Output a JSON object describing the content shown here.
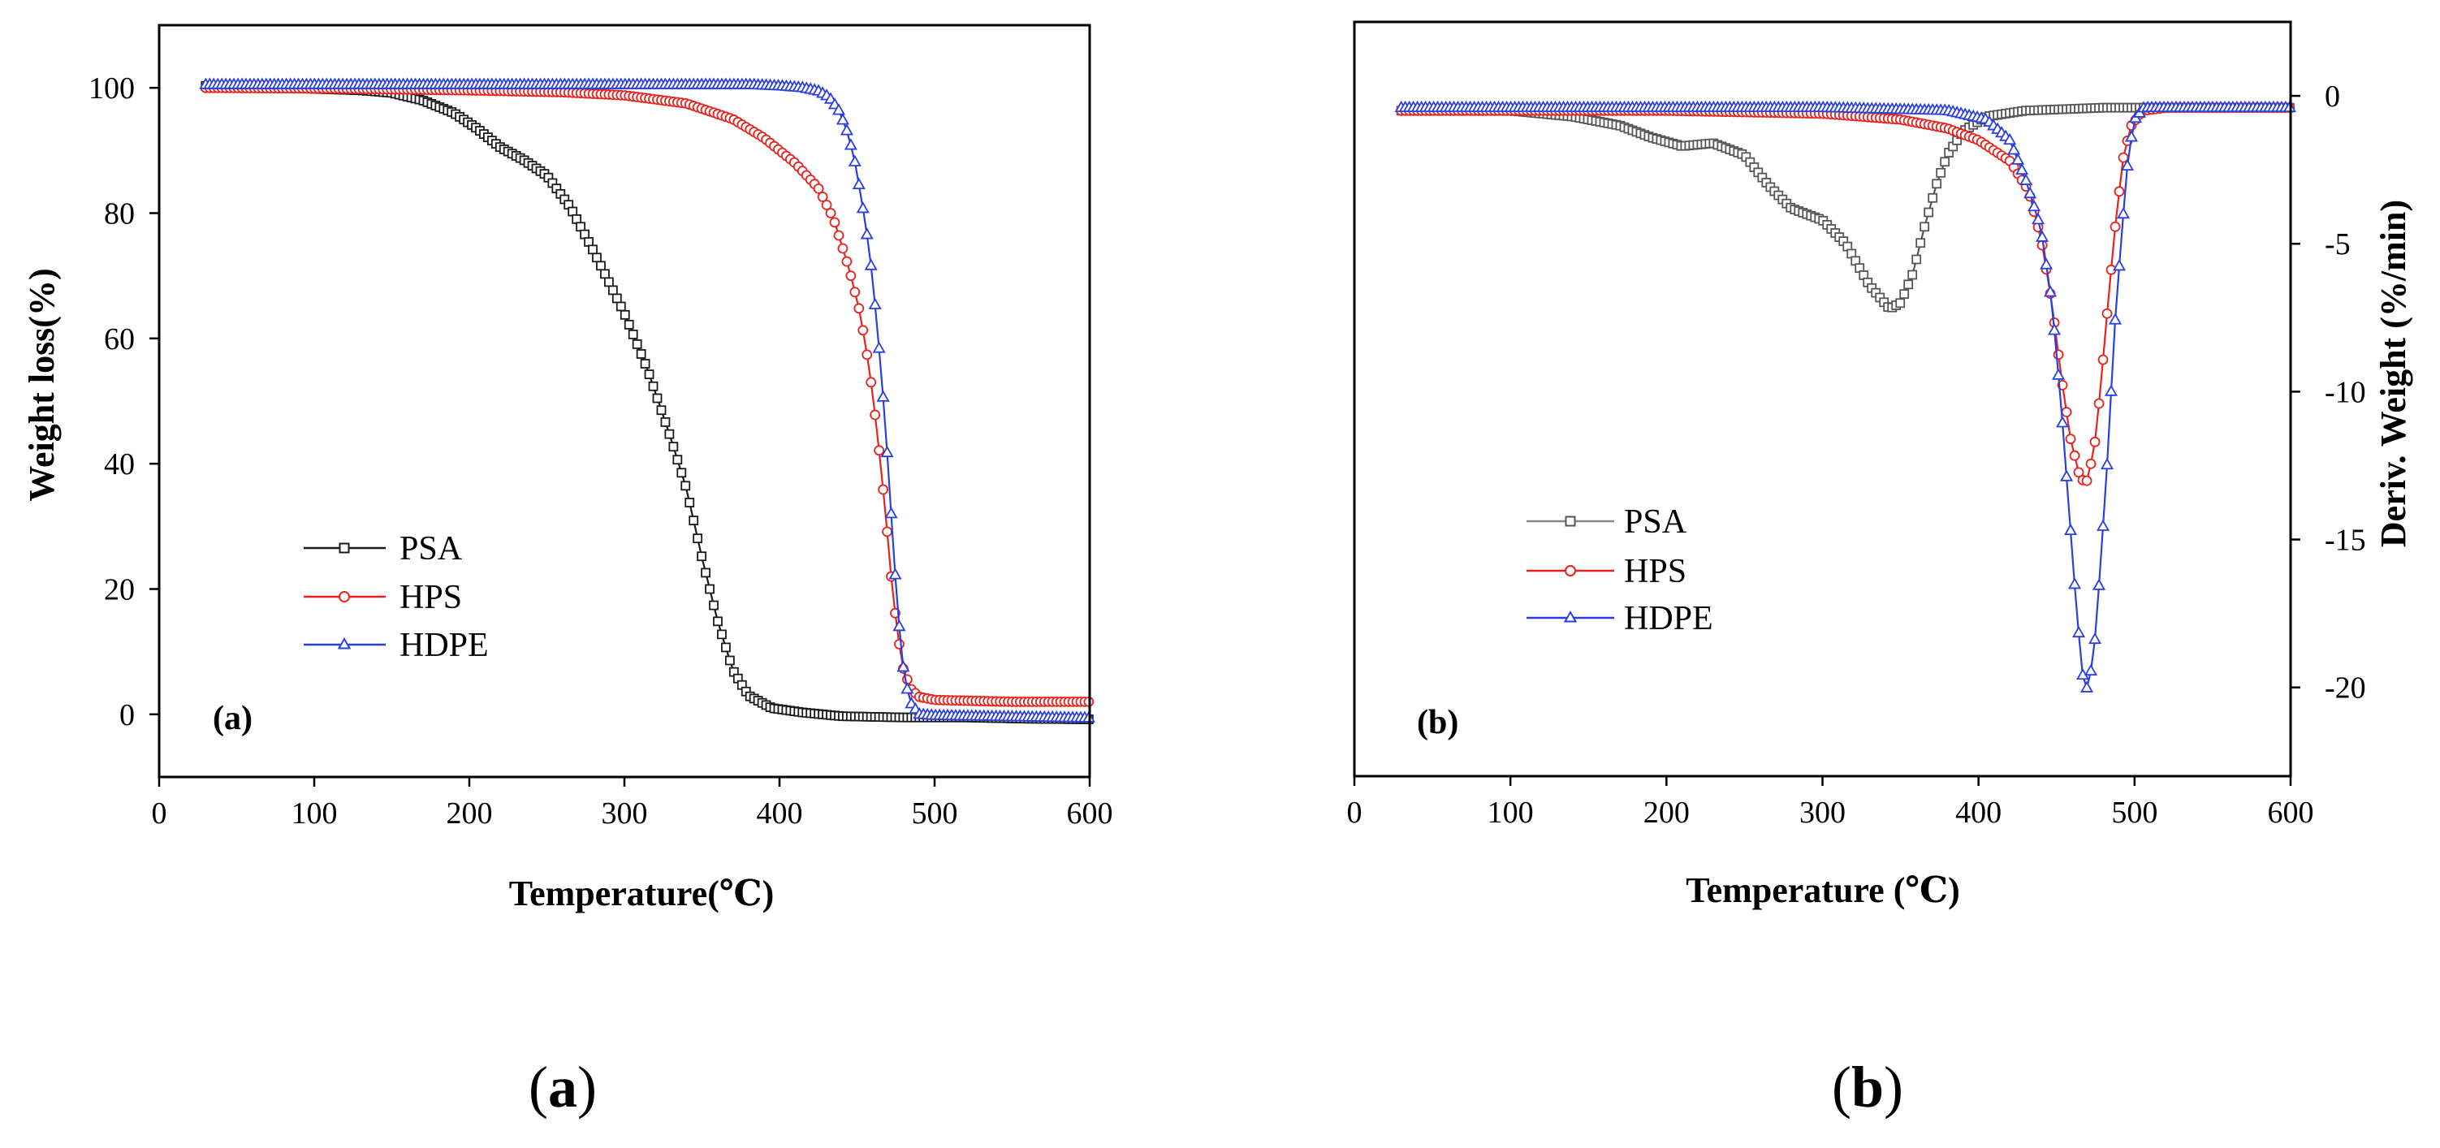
{
  "figure": {
    "captions": [
      "(a)",
      "(b)"
    ],
    "caption_parts": [
      {
        "open": "(",
        "letter": "a",
        "close": ")"
      },
      {
        "open": "(",
        "letter": "b",
        "close": ")"
      }
    ]
  },
  "colors": {
    "PSA": "#1a1a1a",
    "HPS": "#e8221c",
    "HDPE": "#2a3fe0",
    "axis": "#000000"
  },
  "chart_data": [
    {
      "type": "line",
      "panel_label": "(a)",
      "title": "",
      "xlabel": "Temperature(℃)",
      "ylabel": "Weight loss(%)",
      "xlim": [
        0,
        600
      ],
      "ylim": [
        -10,
        110
      ],
      "xticks": [
        0,
        100,
        200,
        300,
        400,
        500,
        600
      ],
      "yticks": [
        0,
        20,
        40,
        60,
        80,
        100
      ],
      "legend_position": "center-left",
      "series": [
        {
          "name": "PSA",
          "marker": "square",
          "points": [
            [
              30,
              100.3
            ],
            [
              80,
              100
            ],
            [
              130,
              99.6
            ],
            [
              150,
              99.2
            ],
            [
              170,
              98
            ],
            [
              190,
              96
            ],
            [
              205,
              93.5
            ],
            [
              220,
              90.5
            ],
            [
              235,
              88.5
            ],
            [
              250,
              86
            ],
            [
              265,
              81
            ],
            [
              280,
              74
            ],
            [
              300,
              64
            ],
            [
              315,
              55
            ],
            [
              330,
              44
            ],
            [
              340,
              36
            ],
            [
              350,
              25
            ],
            [
              360,
              15
            ],
            [
              370,
              7
            ],
            [
              380,
              3
            ],
            [
              395,
              1
            ],
            [
              415,
              0.3
            ],
            [
              440,
              -0.3
            ],
            [
              480,
              -0.5
            ],
            [
              520,
              -0.5
            ],
            [
              560,
              -0.7
            ],
            [
              600,
              -0.8
            ]
          ]
        },
        {
          "name": "HPS",
          "marker": "circle",
          "points": [
            [
              30,
              100
            ],
            [
              100,
              99.9
            ],
            [
              200,
              99.6
            ],
            [
              260,
              99.3
            ],
            [
              300,
              98.8
            ],
            [
              340,
              97.5
            ],
            [
              370,
              95
            ],
            [
              390,
              92
            ],
            [
              410,
              88
            ],
            [
              425,
              84
            ],
            [
              435,
              79
            ],
            [
              445,
              71
            ],
            [
              452,
              64
            ],
            [
              458,
              55
            ],
            [
              463,
              45
            ],
            [
              468,
              33
            ],
            [
              472,
              22
            ],
            [
              476,
              13
            ],
            [
              480,
              7
            ],
            [
              485,
              4
            ],
            [
              490,
              2.8
            ],
            [
              500,
              2.3
            ],
            [
              550,
              2
            ],
            [
              600,
              2
            ]
          ]
        },
        {
          "name": "HDPE",
          "marker": "triangle",
          "points": [
            [
              30,
              100.5
            ],
            [
              100,
              100.5
            ],
            [
              200,
              100.5
            ],
            [
              300,
              100.5
            ],
            [
              380,
              100.5
            ],
            [
              400,
              100.3
            ],
            [
              415,
              100
            ],
            [
              425,
              99.5
            ],
            [
              432,
              98.5
            ],
            [
              438,
              96.5
            ],
            [
              443,
              93.5
            ],
            [
              448,
              89
            ],
            [
              453,
              82
            ],
            [
              458,
              74
            ],
            [
              463,
              62
            ],
            [
              468,
              47
            ],
            [
              472,
              32
            ],
            [
              476,
              17
            ],
            [
              480,
              7
            ],
            [
              484,
              2
            ],
            [
              490,
              0
            ],
            [
              500,
              -0.2
            ],
            [
              550,
              -0.4
            ],
            [
              600,
              -0.6
            ]
          ]
        }
      ]
    },
    {
      "type": "line",
      "panel_label": "(b)",
      "title": "",
      "xlabel": "Temperature (℃)",
      "ylabel": "Deriv. Weight (%/min)",
      "xlim": [
        0,
        600
      ],
      "ylim": [
        -23,
        2.5
      ],
      "xticks": [
        0,
        100,
        200,
        300,
        400,
        500,
        600
      ],
      "yticks": [
        0,
        -5,
        -10,
        -15,
        -20
      ],
      "yaxis_side": "right",
      "legend_position": "center-left",
      "series": [
        {
          "name": "PSA",
          "marker": "square",
          "points": [
            [
              30,
              -0.5
            ],
            [
              100,
              -0.5
            ],
            [
              140,
              -0.7
            ],
            [
              170,
              -1.0
            ],
            [
              190,
              -1.4
            ],
            [
              210,
              -1.7
            ],
            [
              230,
              -1.6
            ],
            [
              250,
              -2.0
            ],
            [
              265,
              -3.0
            ],
            [
              280,
              -3.8
            ],
            [
              300,
              -4.2
            ],
            [
              315,
              -5.0
            ],
            [
              330,
              -6.4
            ],
            [
              343,
              -7.2
            ],
            [
              350,
              -7.0
            ],
            [
              358,
              -6.0
            ],
            [
              365,
              -4.5
            ],
            [
              373,
              -3.0
            ],
            [
              380,
              -2.0
            ],
            [
              390,
              -1.2
            ],
            [
              405,
              -0.7
            ],
            [
              430,
              -0.5
            ],
            [
              480,
              -0.4
            ],
            [
              600,
              -0.4
            ]
          ]
        },
        {
          "name": "HPS",
          "marker": "circle",
          "points": [
            [
              30,
              -0.5
            ],
            [
              200,
              -0.5
            ],
            [
              300,
              -0.6
            ],
            [
              350,
              -0.8
            ],
            [
              380,
              -1.1
            ],
            [
              400,
              -1.5
            ],
            [
              420,
              -2.2
            ],
            [
              432,
              -3.2
            ],
            [
              440,
              -4.8
            ],
            [
              447,
              -7.0
            ],
            [
              453,
              -9.5
            ],
            [
              459,
              -11.6
            ],
            [
              465,
              -12.9
            ],
            [
              469,
              -13.1
            ],
            [
              474,
              -12.0
            ],
            [
              478,
              -10.0
            ],
            [
              483,
              -7.0
            ],
            [
              488,
              -4.2
            ],
            [
              493,
              -2.0
            ],
            [
              498,
              -1.0
            ],
            [
              505,
              -0.5
            ],
            [
              520,
              -0.4
            ],
            [
              600,
              -0.4
            ]
          ]
        },
        {
          "name": "HDPE",
          "marker": "triangle",
          "points": [
            [
              30,
              -0.4
            ],
            [
              200,
              -0.4
            ],
            [
              300,
              -0.4
            ],
            [
              380,
              -0.5
            ],
            [
              405,
              -0.8
            ],
            [
              420,
              -1.5
            ],
            [
              430,
              -2.8
            ],
            [
              440,
              -4.5
            ],
            [
              447,
              -7.0
            ],
            [
              453,
              -10.5
            ],
            [
              458,
              -14.0
            ],
            [
              463,
              -17.5
            ],
            [
              467,
              -19.7
            ],
            [
              470,
              -20.1
            ],
            [
              474,
              -18.8
            ],
            [
              478,
              -16.0
            ],
            [
              483,
              -12.0
            ],
            [
              487,
              -8.0
            ],
            [
              492,
              -4.5
            ],
            [
              496,
              -2.0
            ],
            [
              500,
              -0.8
            ],
            [
              506,
              -0.4
            ],
            [
              600,
              -0.4
            ]
          ]
        }
      ]
    }
  ]
}
